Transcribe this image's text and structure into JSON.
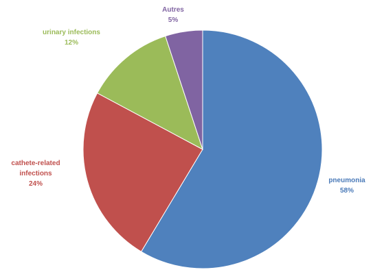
{
  "chart_data": {
    "type": "pie",
    "start_angle_deg": 0,
    "direction": "clockwise",
    "slices": [
      {
        "label_lines": [
          "pneumonia",
          "58%"
        ],
        "name": "pneumonia",
        "value": 58,
        "color": "#4f81bd",
        "label_color": "#4a7ab8"
      },
      {
        "label_lines": [
          "cathete-related",
          "infections",
          "24%"
        ],
        "name": "catheter-related infections",
        "value": 24,
        "color": "#c0504d",
        "label_color": "#c0504d"
      },
      {
        "label_lines": [
          "urinary  infections",
          "12%"
        ],
        "name": "urinary infections",
        "value": 12,
        "color": "#9bbb59",
        "label_color": "#9bbb59"
      },
      {
        "label_lines": [
          "Autres",
          "5%"
        ],
        "name": "Autres",
        "value": 5,
        "color": "#8064a2",
        "label_color": "#8064a2"
      }
    ]
  }
}
